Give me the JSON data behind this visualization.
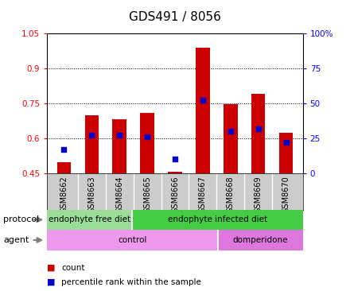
{
  "title": "GDS491 / 8056",
  "samples": [
    "GSM8662",
    "GSM8663",
    "GSM8664",
    "GSM8665",
    "GSM8666",
    "GSM8667",
    "GSM8668",
    "GSM8669",
    "GSM8670"
  ],
  "bar_values": [
    0.497,
    0.7,
    0.68,
    0.71,
    0.455,
    0.99,
    0.745,
    0.79,
    0.625
  ],
  "percentile_values_pct": [
    17,
    27,
    27,
    26,
    10,
    52,
    30,
    32,
    22
  ],
  "ylim_left": [
    0.45,
    1.05
  ],
  "ylim_right": [
    0,
    100
  ],
  "yticks_left": [
    0.45,
    0.6,
    0.75,
    0.9,
    1.05
  ],
  "yticks_right": [
    0,
    25,
    50,
    75,
    100
  ],
  "ytick_labels_left": [
    "0.45",
    "0.6",
    "0.75",
    "0.9",
    "1.05"
  ],
  "ytick_labels_right": [
    "0",
    "25",
    "50",
    "75",
    "100%"
  ],
  "bar_color": "#cc0000",
  "percentile_color": "#0000cc",
  "bar_width": 0.5,
  "protocol_groups": [
    {
      "label": "endophyte free diet",
      "start": 0,
      "end": 3,
      "color": "#99dd99"
    },
    {
      "label": "endophyte infected diet",
      "start": 3,
      "end": 9,
      "color": "#44cc44"
    }
  ],
  "agent_groups": [
    {
      "label": "control",
      "start": 0,
      "end": 6,
      "color": "#ee99ee"
    },
    {
      "label": "domperidone",
      "start": 6,
      "end": 9,
      "color": "#dd77dd"
    }
  ],
  "legend_items": [
    {
      "color": "#cc0000",
      "label": "count"
    },
    {
      "color": "#0000cc",
      "label": "percentile rank within the sample"
    }
  ],
  "background_color": "#ffffff",
  "title_fontsize": 11,
  "tick_fontsize": 7.5,
  "sample_label_fontsize": 7,
  "row_label_fontsize": 8
}
